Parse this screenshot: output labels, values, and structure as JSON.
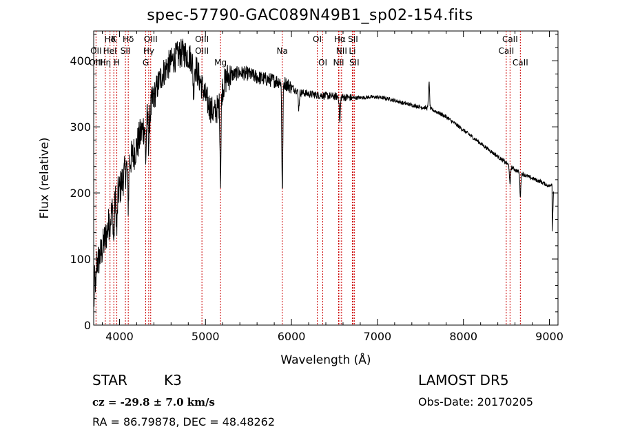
{
  "chart_data": {
    "type": "line",
    "title": "spec-57790-GAC089N49B1_sp02-154.fits",
    "xlabel": "Wavelength (Å)",
    "ylabel": "Flux (relative)",
    "xlim": [
      3700,
      9100
    ],
    "ylim": [
      0,
      445
    ],
    "x_ticks": [
      4000,
      5000,
      6000,
      7000,
      8000,
      9000
    ],
    "y_ticks": [
      0,
      100,
      200,
      300,
      400
    ],
    "grid": false,
    "line_color": "#000000",
    "marker_color": "#cc0000",
    "continuum": [
      [
        3700,
        15
      ],
      [
        3720,
        110
      ],
      [
        3750,
        95
      ],
      [
        3800,
        115
      ],
      [
        3850,
        140
      ],
      [
        3900,
        165
      ],
      [
        3950,
        190
      ],
      [
        4000,
        205
      ],
      [
        4050,
        225
      ],
      [
        4100,
        245
      ],
      [
        4150,
        255
      ],
      [
        4200,
        270
      ],
      [
        4250,
        290
      ],
      [
        4300,
        305
      ],
      [
        4350,
        320
      ],
      [
        4400,
        345
      ],
      [
        4450,
        365
      ],
      [
        4500,
        380
      ],
      [
        4550,
        390
      ],
      [
        4600,
        398
      ],
      [
        4650,
        405
      ],
      [
        4700,
        410
      ],
      [
        4750,
        412
      ],
      [
        4800,
        408
      ],
      [
        4850,
        400
      ],
      [
        4900,
        385
      ],
      [
        4950,
        365
      ],
      [
        5000,
        345
      ],
      [
        5050,
        330
      ],
      [
        5100,
        320
      ],
      [
        5150,
        330
      ],
      [
        5200,
        360
      ],
      [
        5250,
        375
      ],
      [
        5300,
        378
      ],
      [
        5400,
        382
      ],
      [
        5500,
        380
      ],
      [
        5600,
        375
      ],
      [
        5700,
        372
      ],
      [
        5800,
        370
      ],
      [
        5900,
        368
      ],
      [
        6000,
        360
      ],
      [
        6100,
        352
      ],
      [
        6200,
        350
      ],
      [
        6300,
        348
      ],
      [
        6400,
        347
      ],
      [
        6500,
        346
      ],
      [
        6600,
        345
      ],
      [
        6700,
        344
      ],
      [
        6800,
        344
      ],
      [
        6900,
        345
      ],
      [
        7000,
        345
      ],
      [
        7100,
        343
      ],
      [
        7200,
        340
      ],
      [
        7300,
        336
      ],
      [
        7400,
        333
      ],
      [
        7500,
        330
      ],
      [
        7600,
        328
      ],
      [
        7700,
        322
      ],
      [
        7800,
        315
      ],
      [
        7900,
        305
      ],
      [
        8000,
        295
      ],
      [
        8100,
        285
      ],
      [
        8200,
        275
      ],
      [
        8300,
        265
      ],
      [
        8400,
        255
      ],
      [
        8500,
        245
      ],
      [
        8600,
        235
      ],
      [
        8700,
        228
      ],
      [
        8800,
        222
      ],
      [
        8900,
        217
      ],
      [
        9000,
        210
      ],
      [
        9050,
        218
      ]
    ],
    "absorption_features": [
      {
        "x": 3725,
        "depth": 60
      },
      {
        "x": 3934,
        "depth": 55
      },
      {
        "x": 3969,
        "depth": 55
      },
      {
        "x": 4102,
        "depth": 60
      },
      {
        "x": 4305,
        "depth": 55
      },
      {
        "x": 4341,
        "depth": 40
      },
      {
        "x": 4861,
        "depth": 45
      },
      {
        "x": 5175,
        "depth": 120
      },
      {
        "x": 5894,
        "depth": 165
      },
      {
        "x": 6085,
        "depth": 25
      },
      {
        "x": 6563,
        "depth": 40
      },
      {
        "x": 7600,
        "depth": -40
      },
      {
        "x": 8542,
        "depth": 30
      },
      {
        "x": 8662,
        "depth": 35
      }
    ],
    "lines": [
      {
        "label": "Hδ",
        "x": 3890,
        "row": 0
      },
      {
        "label": "K",
        "x": 3934,
        "row": 0
      },
      {
        "label": "Hδ",
        "x": 4102,
        "row": 0
      },
      {
        "label": "OIII",
        "x": 4363,
        "row": 0
      },
      {
        "label": "OIII",
        "x": 4959,
        "row": 0
      },
      {
        "label": "OI",
        "x": 6300,
        "row": 0
      },
      {
        "label": "Hα",
        "x": 6563,
        "row": 0
      },
      {
        "label": "SII",
        "x": 6716,
        "row": 0
      },
      {
        "label": "CaII",
        "x": 8542,
        "row": 0
      },
      {
        "label": "OII",
        "x": 3727,
        "row": 1
      },
      {
        "label": "HeI",
        "x": 3889,
        "row": 1
      },
      {
        "label": "SII",
        "x": 4069,
        "row": 1
      },
      {
        "label": "Hγ",
        "x": 4340,
        "row": 1
      },
      {
        "label": "OIII",
        "x": 4959,
        "row": 1
      },
      {
        "label": "Na",
        "x": 5893,
        "row": 1
      },
      {
        "label": "NII",
        "x": 6583,
        "row": 1
      },
      {
        "label": "Li",
        "x": 6708,
        "row": 1
      },
      {
        "label": "CaII",
        "x": 8498,
        "row": 1
      },
      {
        "label": "OIII",
        "x": 3727,
        "row": 2
      },
      {
        "label": "Hη",
        "x": 3835,
        "row": 2
      },
      {
        "label": "H",
        "x": 3969,
        "row": 2
      },
      {
        "label": "G",
        "x": 4305,
        "row": 2
      },
      {
        "label": "Mg",
        "x": 5175,
        "row": 2
      },
      {
        "label": "OI",
        "x": 6364,
        "row": 2
      },
      {
        "label": "NII",
        "x": 6548,
        "row": 2
      },
      {
        "label": "SII",
        "x": 6731,
        "row": 2
      },
      {
        "label": "CaII",
        "x": 8662,
        "row": 2
      }
    ]
  },
  "footer": {
    "class_label": "STAR",
    "subclass": "K3",
    "survey": "LAMOST  DR5",
    "cz_text": "cz = -29.8 ± 7.0 km/s",
    "obs_date": "Obs-Date: 20170205",
    "coords": "RA =  86.79878, DEC =  48.48262"
  }
}
